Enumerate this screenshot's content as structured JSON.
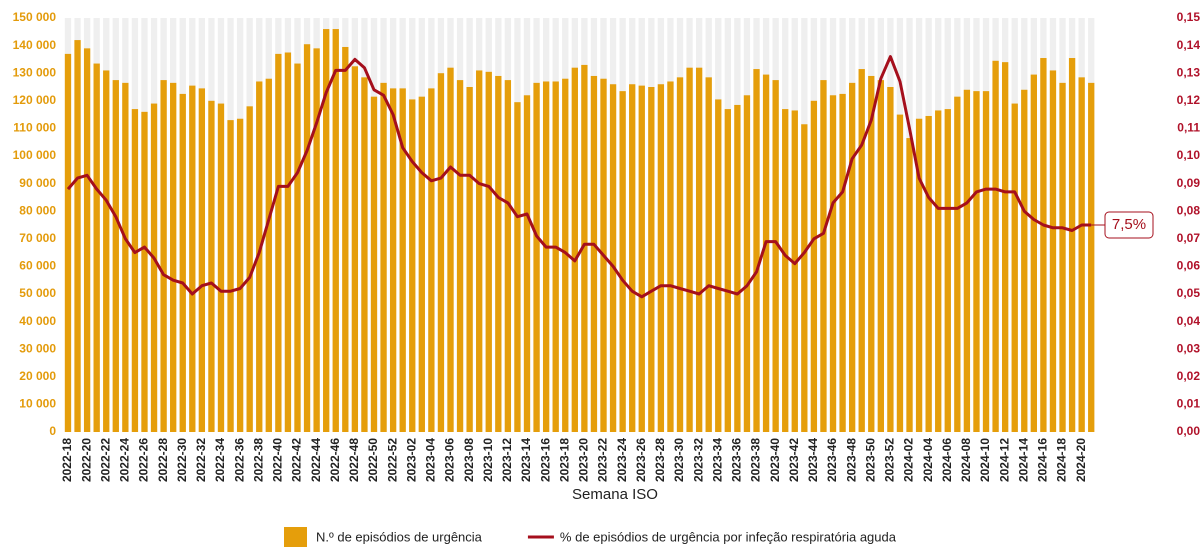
{
  "chart_data": {
    "type": "bar-line",
    "x_label": "Semana ISO",
    "annotation": "7,5%",
    "categories": [
      "2022-18",
      null,
      "2022-20",
      null,
      "2022-22",
      null,
      "2022-24",
      null,
      "2022-26",
      null,
      "2022-28",
      null,
      "2022-30",
      null,
      "2022-32",
      null,
      "2022-34",
      null,
      "2022-36",
      null,
      "2022-38",
      null,
      "2022-40",
      null,
      "2022-42",
      null,
      "2022-44",
      null,
      "2022-46",
      null,
      "2022-48",
      null,
      "2022-50",
      null,
      "2022-52",
      null,
      "2023-02",
      null,
      "2023-04",
      null,
      "2023-06",
      null,
      "2023-08",
      null,
      "2023-10",
      null,
      "2023-12",
      null,
      "2023-14",
      null,
      "2023-16",
      null,
      "2023-18",
      null,
      "2023-20",
      null,
      "2023-22",
      null,
      "2023-24",
      null,
      "2023-26",
      null,
      "2023-28",
      null,
      "2023-30",
      null,
      "2023-32",
      null,
      "2023-34",
      null,
      "2023-36",
      null,
      "2023-38",
      null,
      "2023-40",
      null,
      "2023-42",
      null,
      "2023-44",
      null,
      "2023-46",
      null,
      "2023-48",
      null,
      "2023-50",
      null,
      "2023-52",
      null,
      "2024-02",
      null,
      "2024-04",
      null,
      "2024-06",
      null,
      "2024-08",
      null,
      "2024-10",
      null,
      "2024-12",
      null,
      "2024-14",
      null,
      "2024-16",
      null,
      "2024-18",
      null,
      "2024-20",
      null
    ],
    "series": [
      {
        "name": "N.º de episódios de urgência",
        "kind": "bar",
        "color": "#e59e0b",
        "axis": "y",
        "values": [
          137000,
          142000,
          139000,
          133500,
          131000,
          127500,
          126500,
          117000,
          116000,
          119000,
          127500,
          126500,
          122500,
          125500,
          124500,
          120000,
          119000,
          113000,
          113500,
          118000,
          127000,
          128000,
          137000,
          137500,
          133500,
          140500,
          139000,
          146000,
          146000,
          139500,
          132500,
          128500,
          121500,
          126500,
          124500,
          124500,
          120500,
          121500,
          124500,
          130000,
          132000,
          127500,
          125000,
          131000,
          130500,
          129000,
          127500,
          119500,
          122000,
          126500,
          127000,
          127000,
          128000,
          132000,
          133000,
          129000,
          128000,
          126000,
          123500,
          126000,
          125500,
          125000,
          126000,
          127000,
          128500,
          132000,
          132000,
          128500,
          120500,
          117000,
          118500,
          122000,
          131500,
          129500,
          127500,
          117000,
          116500,
          111500,
          120000,
          127500,
          122000,
          122500,
          126500,
          131500,
          129000,
          127500,
          125000,
          115000,
          106500,
          113500,
          114500,
          116500,
          117000,
          121500,
          124000,
          123500,
          123500,
          134500,
          134000,
          119000,
          124000,
          129500,
          135500,
          131000,
          126500,
          135500,
          128500,
          126500
        ]
      },
      {
        "name": "% de episódios de urgência por infeção respiratória aguda",
        "kind": "line",
        "color": "#a50f1c",
        "axis": "y2",
        "values": [
          0.088,
          0.092,
          0.093,
          0.088,
          0.084,
          0.078,
          0.07,
          0.065,
          0.067,
          0.063,
          0.057,
          0.055,
          0.054,
          0.05,
          0.053,
          0.054,
          0.051,
          0.051,
          0.052,
          0.056,
          0.065,
          0.077,
          0.089,
          0.089,
          0.094,
          0.102,
          0.112,
          0.123,
          0.131,
          0.131,
          0.135,
          0.132,
          0.124,
          0.122,
          0.115,
          0.103,
          0.098,
          0.094,
          0.091,
          0.092,
          0.096,
          0.093,
          0.093,
          0.09,
          0.089,
          0.085,
          0.083,
          0.078,
          0.079,
          0.071,
          0.067,
          0.067,
          0.065,
          0.062,
          0.068,
          0.068,
          0.064,
          0.06,
          0.055,
          0.051,
          0.049,
          0.051,
          0.053,
          0.053,
          0.052,
          0.051,
          0.05,
          0.053,
          0.052,
          0.051,
          0.05,
          0.053,
          0.058,
          0.069,
          0.069,
          0.064,
          0.061,
          0.065,
          0.07,
          0.072,
          0.083,
          0.087,
          0.099,
          0.104,
          0.113,
          0.128,
          0.136,
          0.127,
          0.11,
          0.092,
          0.085,
          0.081,
          0.081,
          0.081,
          0.083,
          0.087,
          0.088,
          0.088,
          0.087,
          0.087,
          0.08,
          0.077,
          0.075,
          0.074,
          0.074,
          0.073,
          0.075,
          0.075
        ]
      }
    ],
    "ylim": [
      0,
      150000
    ],
    "yticks": [
      0,
      {
        "value": 10000,
        "label": "10 000"
      },
      {
        "value": 20000,
        "label": "20 000"
      },
      {
        "value": 30000,
        "label": "30 000"
      },
      {
        "value": 40000,
        "label": "40 000"
      },
      {
        "value": 50000,
        "label": "50 000"
      },
      {
        "value": 60000,
        "label": "60 000"
      },
      {
        "value": 70000,
        "label": "70 000"
      },
      {
        "value": 80000,
        "label": "80 000"
      },
      {
        "value": 90000,
        "label": "90 000"
      },
      {
        "value": 100000,
        "label": "100 000"
      },
      {
        "value": 110000,
        "label": "110 000"
      },
      {
        "value": 120000,
        "label": "120 000"
      },
      {
        "value": 130000,
        "label": "130 000"
      },
      {
        "value": 140000,
        "label": "140 000"
      },
      {
        "value": 150000,
        "label": "150 000"
      }
    ],
    "y2lim": [
      0,
      0.15
    ],
    "y2ticks": [
      {
        "value": 0,
        "label": "0,00"
      },
      {
        "value": 0.01,
        "label": "0,01"
      },
      {
        "value": 0.02,
        "label": "0,02"
      },
      {
        "value": 0.03,
        "label": "0,03"
      },
      {
        "value": 0.04,
        "label": "0,04"
      },
      {
        "value": 0.05,
        "label": "0,05"
      },
      {
        "value": 0.06,
        "label": "0,06"
      },
      {
        "value": 0.07,
        "label": "0,07"
      },
      {
        "value": 0.08,
        "label": "0,08"
      },
      {
        "value": 0.09,
        "label": "0,09"
      },
      {
        "value": 0.1,
        "label": "0,10"
      },
      {
        "value": 0.11,
        "label": "0,11"
      },
      {
        "value": 0.12,
        "label": "0,12"
      },
      {
        "value": 0.13,
        "label": "0,13"
      },
      {
        "value": 0.14,
        "label": "0,14"
      },
      {
        "value": 0.15,
        "label": "0,15"
      }
    ],
    "legend": "bottom"
  }
}
